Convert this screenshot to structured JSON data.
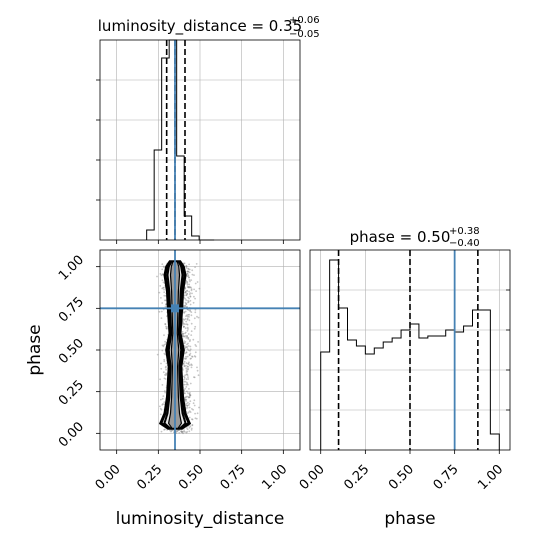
{
  "chart_data": [
    {
      "id": "lum_hist",
      "type": "histogram",
      "parameter": "luminosity_distance",
      "title": {
        "prefix": "luminosity_distance = 0.35",
        "upper": "+0.06",
        "lower": "−0.05"
      },
      "x_range": [
        -0.1,
        1.1
      ],
      "y_range": [
        0,
        1.0
      ],
      "y_tick_marks_at": [
        0.2,
        0.4,
        0.6,
        0.8
      ],
      "bin_edges": [
        0.18,
        0.225,
        0.27,
        0.315,
        0.36,
        0.405,
        0.45,
        0.495,
        0.54,
        0.585
      ],
      "bin_heights": [
        0.05,
        0.45,
        0.91,
        1.0,
        0.42,
        0.12,
        0.02,
        0.0,
        0.0
      ],
      "quantile_lines": [
        0.3,
        0.35,
        0.41
      ],
      "truth": 0.35,
      "grid": true
    },
    {
      "id": "phase_hist",
      "type": "histogram",
      "parameter": "phase",
      "title": {
        "prefix": "phase = 0.50",
        "upper": "+0.38",
        "lower": "−0.40"
      },
      "x_range": [
        -0.06,
        1.06
      ],
      "y_range": [
        0,
        1.0
      ],
      "y_tick_marks_at": [
        0.2,
        0.4,
        0.6,
        0.8
      ],
      "bin_edges": [
        0.0,
        0.05,
        0.1,
        0.15,
        0.2,
        0.25,
        0.3,
        0.35,
        0.4,
        0.45,
        0.5,
        0.55,
        0.6,
        0.65,
        0.7,
        0.75,
        0.8,
        0.85,
        0.9,
        0.95,
        1.0
      ],
      "bin_heights": [
        0.49,
        0.95,
        0.71,
        0.55,
        0.52,
        0.48,
        0.51,
        0.54,
        0.56,
        0.6,
        0.63,
        0.56,
        0.57,
        0.57,
        0.6,
        0.59,
        0.62,
        0.7,
        0.7,
        0.08
      ],
      "quantile_lines": [
        0.1,
        0.5,
        0.88
      ],
      "truth": 0.75,
      "grid": true
    },
    {
      "id": "joint",
      "type": "2d-density",
      "x_parameter": "luminosity_distance",
      "y_parameter": "phase",
      "x_range": [
        -0.1,
        1.1
      ],
      "y_range": [
        -0.1,
        1.1
      ],
      "point_cloud_x_range": [
        0.21,
        0.53
      ],
      "point_cloud_y_range": [
        0.0,
        1.02
      ],
      "truth": {
        "x": 0.35,
        "y": 0.75
      },
      "contour_center_x": 0.35,
      "contour_half_widths": [
        {
          "phase": 0.03,
          "width": 0.04
        },
        {
          "phase": 0.06,
          "width": 0.085
        },
        {
          "phase": 0.12,
          "width": 0.06
        },
        {
          "phase": 0.22,
          "width": 0.045
        },
        {
          "phase": 0.4,
          "width": 0.035
        },
        {
          "phase": 0.5,
          "width": 0.05
        },
        {
          "phase": 0.6,
          "width": 0.03
        },
        {
          "phase": 0.75,
          "width": 0.04
        },
        {
          "phase": 0.85,
          "width": 0.045
        },
        {
          "phase": 0.95,
          "width": 0.06
        },
        {
          "phase": 1.0,
          "width": 0.05
        },
        {
          "phase": 1.03,
          "width": 0.03
        }
      ],
      "grid": true
    }
  ],
  "axes": {
    "x_labels": [
      "luminosity_distance",
      "phase"
    ],
    "y_label": "phase",
    "x_ticks": [
      0.0,
      0.25,
      0.5,
      0.75,
      1.0
    ],
    "x_tick_labels": [
      "0.00",
      "0.25",
      "0.50",
      "0.75",
      "1.00"
    ],
    "y_ticks": [
      0.0,
      0.25,
      0.5,
      0.75,
      1.0
    ],
    "y_tick_labels": [
      "0.00",
      "0.25",
      "0.50",
      "0.75",
      "1.00"
    ]
  },
  "colors": {
    "truth": "#4682b4",
    "hist_line": "#000000",
    "grid": "#b0b0b0",
    "scatter": "#808080"
  }
}
